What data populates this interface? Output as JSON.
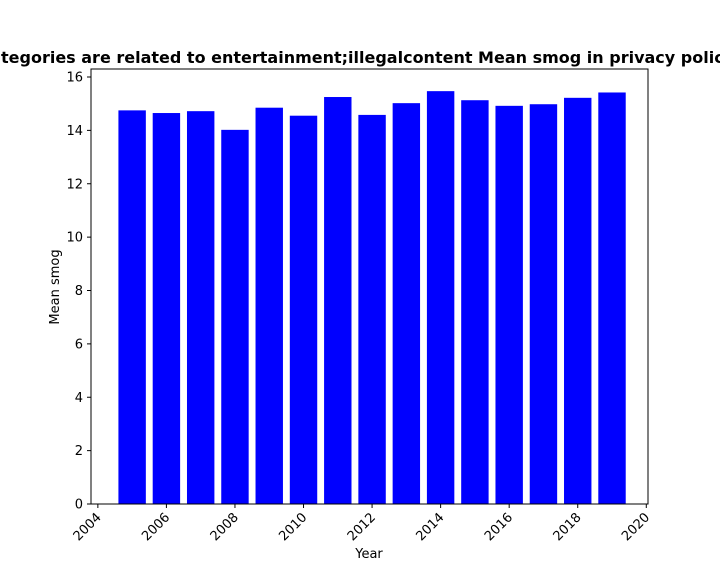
{
  "chart_data": {
    "type": "bar",
    "title": "Categories are related to entertainment;illegalcontent Mean smog in privacy policies",
    "xlabel": "Year",
    "ylabel": "Mean smog",
    "x": [
      2005,
      2006,
      2007,
      2008,
      2009,
      2010,
      2011,
      2012,
      2013,
      2014,
      2015,
      2016,
      2017,
      2018,
      2019
    ],
    "values": [
      14.75,
      14.65,
      14.72,
      14.02,
      14.85,
      14.55,
      15.25,
      14.58,
      15.02,
      15.47,
      15.13,
      14.92,
      14.98,
      15.22,
      15.42
    ],
    "bar_color": "#0000ff",
    "xlim": [
      2003.8,
      2020.05
    ],
    "ylim": [
      0,
      16.3
    ],
    "xticks": [
      2004,
      2006,
      2008,
      2010,
      2012,
      2014,
      2016,
      2018,
      2020
    ],
    "yticks": [
      0,
      2,
      4,
      6,
      8,
      10,
      12,
      14,
      16
    ],
    "xtick_rotation": 45,
    "grid": false,
    "legend": "none"
  }
}
